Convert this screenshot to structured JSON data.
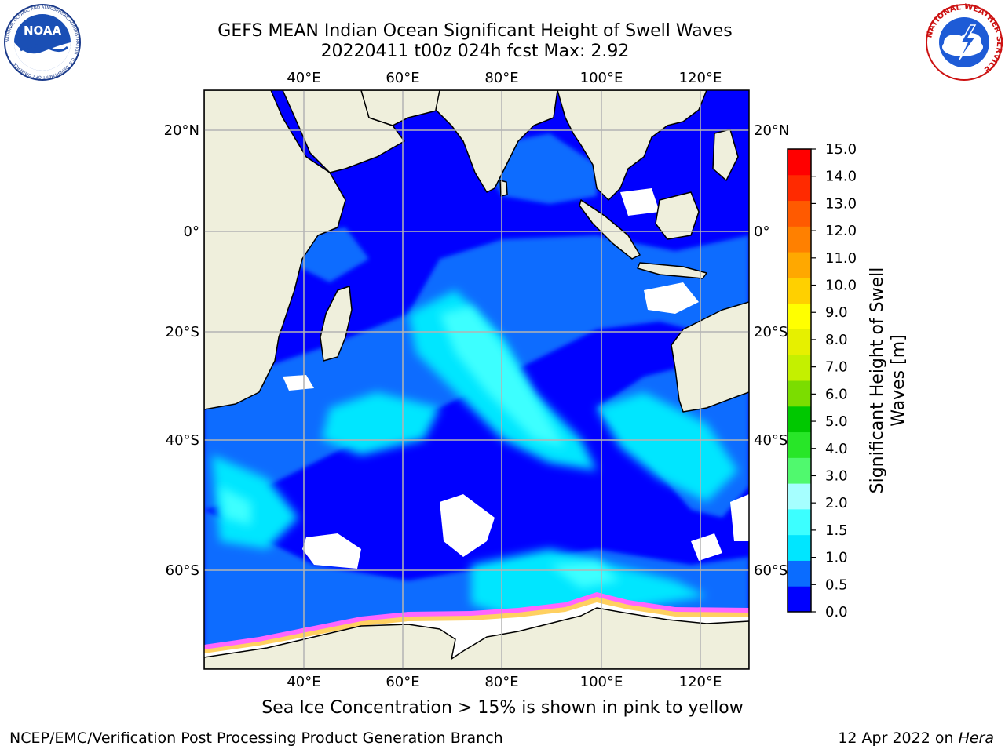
{
  "title_line1": "GEFS MEAN Indian Ocean Significant Height of Swell Waves",
  "title_line2": "20220411 t00z 024h fcst   Max: 2.92",
  "logos": {
    "noaa_text": "NOAA",
    "noaa_ring_text": "NATIONAL OCEANIC AND ATMOSPHERIC ADMINISTRATION · U.S. DEPARTMENT OF COMMERCE",
    "nws_ring_text": "NATIONAL WEATHER SERVICE"
  },
  "map": {
    "lon_range": [
      20,
      130
    ],
    "lat_range": [
      -72,
      28
    ],
    "lon_ticks": [
      "40°E",
      "60°E",
      "80°E",
      "100°E",
      "120°E"
    ],
    "lat_ticks": [
      "20°N",
      "0°",
      "20°S",
      "40°S",
      "60°S"
    ],
    "gridlines": true,
    "colors": {
      "land": "#efefdc",
      "ice": "#ffffff",
      "coast": "#000000",
      "grid": "#b4b4b4"
    }
  },
  "colorbar": {
    "title_line1": "Significant Height of Swell",
    "title_line2": "Waves [m]",
    "ticks": [
      "0.0",
      "0.5",
      "1.0",
      "1.5",
      "2.0",
      "3.0",
      "4.0",
      "5.0",
      "6.0",
      "7.0",
      "8.0",
      "9.0",
      "10.0",
      "11.0",
      "12.0",
      "13.0",
      "14.0",
      "15.0"
    ],
    "colors": [
      "#0000ff",
      "#0a6cff",
      "#00e6ff",
      "#3cffff",
      "#a6ffff",
      "#50f96e",
      "#28e628",
      "#00c800",
      "#7bdd00",
      "#c4f000",
      "#e6f000",
      "#ffff00",
      "#ffd000",
      "#ffa800",
      "#ff8000",
      "#ff5a00",
      "#ff2a00",
      "#ff0000"
    ]
  },
  "ice_note": "Sea Ice Concentration > 15% is shown in pink to yellow",
  "footer": {
    "left": "NCEP/EMC/Verification Post Processing Product Generation Branch",
    "right_prefix": "12 Apr 2022 on ",
    "right_italic": "Hera"
  }
}
